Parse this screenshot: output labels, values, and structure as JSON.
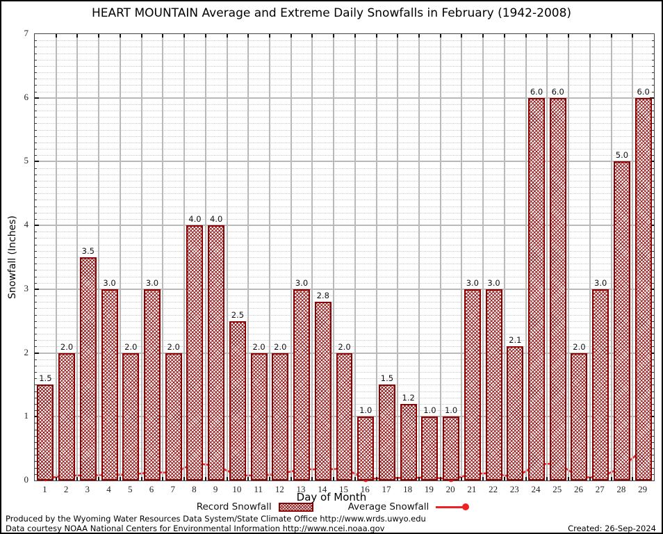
{
  "chart_data": {
    "type": "bar",
    "title": "HEART MOUNTAIN Average and Extreme Daily Snowfalls in February (1942-2008)",
    "xlabel": "Day of Month",
    "ylabel": "Snowfall (Inches)",
    "ylim": [
      0,
      7
    ],
    "yticks": [
      0,
      1,
      2,
      3,
      4,
      5,
      6,
      7
    ],
    "grid": {
      "major": "solid gray",
      "minor": "dotted gray every 0.1",
      "vertical": "solid gray at day boundaries"
    },
    "legend_position": "bottom center",
    "categories": [
      "1",
      "2",
      "3",
      "4",
      "5",
      "6",
      "7",
      "8",
      "9",
      "10",
      "11",
      "12",
      "13",
      "14",
      "15",
      "16",
      "17",
      "18",
      "19",
      "20",
      "21",
      "22",
      "23",
      "24",
      "25",
      "26",
      "27",
      "28",
      "29"
    ],
    "series": [
      {
        "name": "Record Snowfall",
        "type": "bar",
        "color": "#8b0000",
        "fill": "crosshatch dark red on white",
        "values": [
          1.5,
          2.0,
          3.5,
          3.0,
          2.0,
          3.0,
          2.0,
          4.0,
          4.0,
          2.5,
          2.0,
          2.0,
          3.0,
          2.8,
          2.0,
          1.0,
          1.5,
          1.2,
          1.0,
          1.0,
          3.0,
          3.0,
          2.1,
          6.0,
          6.0,
          2.0,
          3.0,
          5.0,
          6.0
        ],
        "data_labels": [
          "1.5",
          "2.0",
          "3.5",
          "3.0",
          "2.0",
          "3.0",
          "2.0",
          "4.0",
          "4.0",
          "2.5",
          "2.0",
          "2.0",
          "3.0",
          "2.8",
          "2.0",
          "1.0",
          "1.5",
          "1.2",
          "1.0",
          "1.0",
          "3.0",
          "3.0",
          "2.1",
          "6.0",
          "6.0",
          "2.0",
          "3.0",
          "5.0",
          "6.0"
        ]
      },
      {
        "name": "Average Snowfall",
        "type": "line",
        "color": "#ee2222",
        "marker": "filled circle",
        "values": [
          0.03,
          0.08,
          0.08,
          0.09,
          0.09,
          0.13,
          0.12,
          0.27,
          0.23,
          0.08,
          0.08,
          0.1,
          0.18,
          0.17,
          0.19,
          0.02,
          0.04,
          0.04,
          0.05,
          0.02,
          0.1,
          0.12,
          0.04,
          0.25,
          0.27,
          0.05,
          0.05,
          0.21,
          0.49
        ]
      }
    ]
  },
  "legend": {
    "record": "Record Snowfall",
    "average": "Average Snowfall"
  },
  "footer": {
    "line1": "Produced by the Wyoming Water Resources Data System/State Climate Office http://www.wrds.uwyo.edu",
    "line2": "Data courtesy NOAA National Centers for Environmental Information http://www.ncei.noaa.gov",
    "created": "Created: 26-Sep-2024"
  },
  "colors": {
    "bar_border": "#8b0000",
    "bar_hatch": "#941414",
    "line": "#ee2222",
    "grid_major": "#b9b9b9",
    "grid_minor": "#c9c9c9",
    "frame": "#444444",
    "text": "#000000"
  }
}
